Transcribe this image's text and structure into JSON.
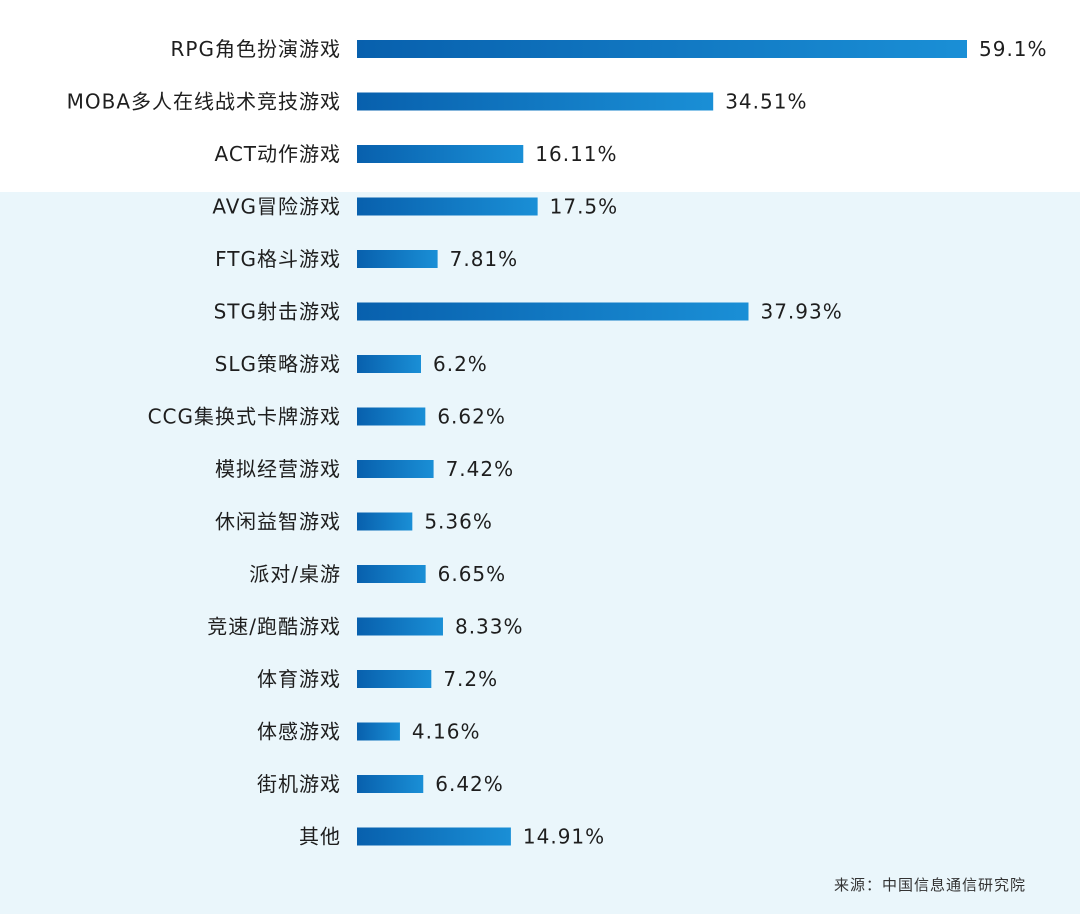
{
  "chart_data": {
    "type": "bar",
    "orientation": "horizontal",
    "categories": [
      "RPG角色扮演游戏",
      "MOBA多人在线战术竞技游戏",
      "ACT动作游戏",
      "AVG冒险游戏",
      "FTG格斗游戏",
      "STG射击游戏",
      "SLG策略游戏",
      "CCG集换式卡牌游戏",
      "模拟经营游戏",
      "休闲益智游戏",
      "派对/桌游",
      "竞速/跑酷游戏",
      "体育游戏",
      "体感游戏",
      "街机游戏",
      "其他"
    ],
    "values": [
      59.1,
      34.51,
      16.11,
      17.5,
      7.81,
      37.93,
      6.2,
      6.62,
      7.42,
      5.36,
      6.65,
      8.33,
      7.2,
      4.16,
      6.42,
      14.91
    ],
    "value_labels": [
      "59.1%",
      "34.51%",
      "16.11%",
      "17.5%",
      "7.81%",
      "37.93%",
      "6.2%",
      "6.62%",
      "7.42%",
      "5.36%",
      "6.65%",
      "8.33%",
      "7.2%",
      "4.16%",
      "6.42%",
      "14.91%"
    ],
    "xlim": [
      0,
      59.1
    ],
    "grid": false,
    "bar_color_start": "#0860ad",
    "bar_color_end": "#1a8fd6"
  },
  "source_note": "来源：中国信息通信研究院",
  "colors": {
    "background": "#ffffff",
    "band": "#eaf6fb",
    "text": "#1e1e1e"
  }
}
